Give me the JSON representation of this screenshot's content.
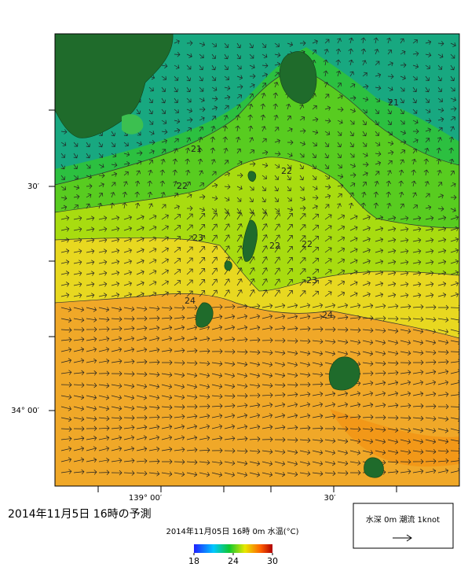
{
  "title": "2014年11月5日 16時の予測",
  "map": {
    "lat_labels": [
      "30′",
      "34° 00′"
    ],
    "lon_labels": [
      "139° 00′",
      "30′"
    ],
    "contour_labels": [
      21,
      21,
      22,
      22,
      22,
      22,
      23,
      23,
      24,
      24
    ]
  },
  "colorbar": {
    "label": "2014年11月05日 16時 0m 水温(°C)",
    "range": [
      18,
      30
    ],
    "ticks": [
      18,
      24,
      30
    ]
  },
  "legend": {
    "label": "水深 0m 潮流 1knot"
  }
}
